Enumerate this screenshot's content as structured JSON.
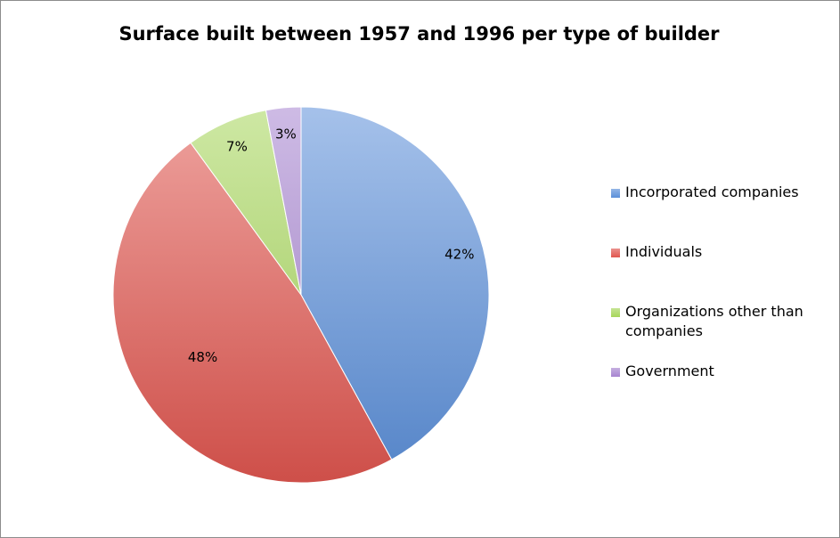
{
  "chart_data": {
    "type": "pie",
    "title": "Surface built between 1957 and 1996 per type of builder",
    "legend_position": "right",
    "slices": [
      {
        "name": "Incorporated companies",
        "value": 42,
        "label": "42%",
        "color": "#5b8fd9"
      },
      {
        "name": "Individuals",
        "value": 48,
        "label": "48%",
        "color": "#e0564f"
      },
      {
        "name": "Organizations other than companies",
        "value": 7,
        "label": "7%",
        "color": "#a6d65a"
      },
      {
        "name": "Government",
        "value": 3,
        "label": "3%",
        "color": "#a684d0"
      }
    ]
  }
}
